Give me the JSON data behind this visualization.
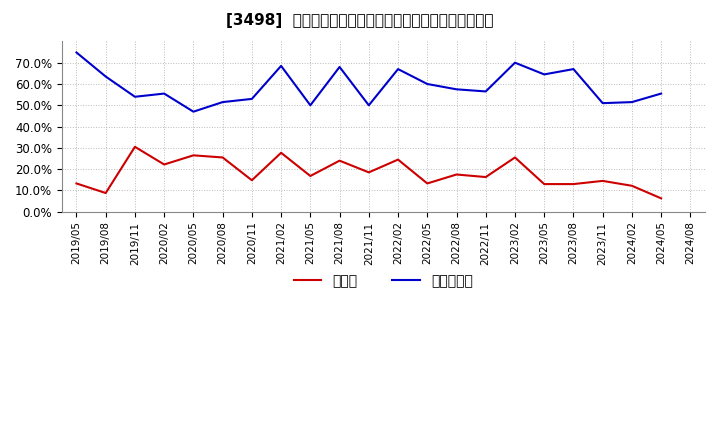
{
  "title": "[3498]  現預金、有利子負債の総資産に対する比率の推移",
  "x_labels": [
    "2019/05",
    "2019/08",
    "2019/11",
    "2020/02",
    "2020/05",
    "2020/08",
    "2020/11",
    "2021/02",
    "2021/05",
    "2021/08",
    "2021/11",
    "2022/02",
    "2022/05",
    "2022/08",
    "2022/11",
    "2023/02",
    "2023/05",
    "2023/08",
    "2023/11",
    "2024/02",
    "2024/05",
    "2024/08"
  ],
  "cash_values": [
    0.133,
    0.088,
    0.305,
    0.222,
    0.265,
    0.255,
    0.148,
    0.277,
    0.168,
    0.24,
    0.185,
    0.245,
    0.133,
    0.175,
    0.163,
    0.255,
    0.13,
    0.13,
    0.145,
    0.122,
    0.063,
    null
  ],
  "debt_values": [
    0.748,
    0.635,
    0.54,
    0.555,
    0.47,
    0.515,
    0.53,
    0.685,
    0.5,
    0.68,
    0.5,
    0.67,
    0.6,
    0.575,
    0.565,
    0.7,
    0.645,
    0.67,
    0.51,
    0.515,
    0.555,
    null
  ],
  "cash_color": "#cc0000",
  "debt_color": "#0000cc",
  "legend_cash": "現預金",
  "legend_debt": "有利子負債",
  "ylim": [
    0.0,
    0.8
  ],
  "yticks": [
    0.0,
    0.1,
    0.2,
    0.3,
    0.4,
    0.5,
    0.6,
    0.7
  ],
  "bg_color": "#ffffff",
  "grid_color": "#bbbbbb",
  "title_fontsize": 11
}
